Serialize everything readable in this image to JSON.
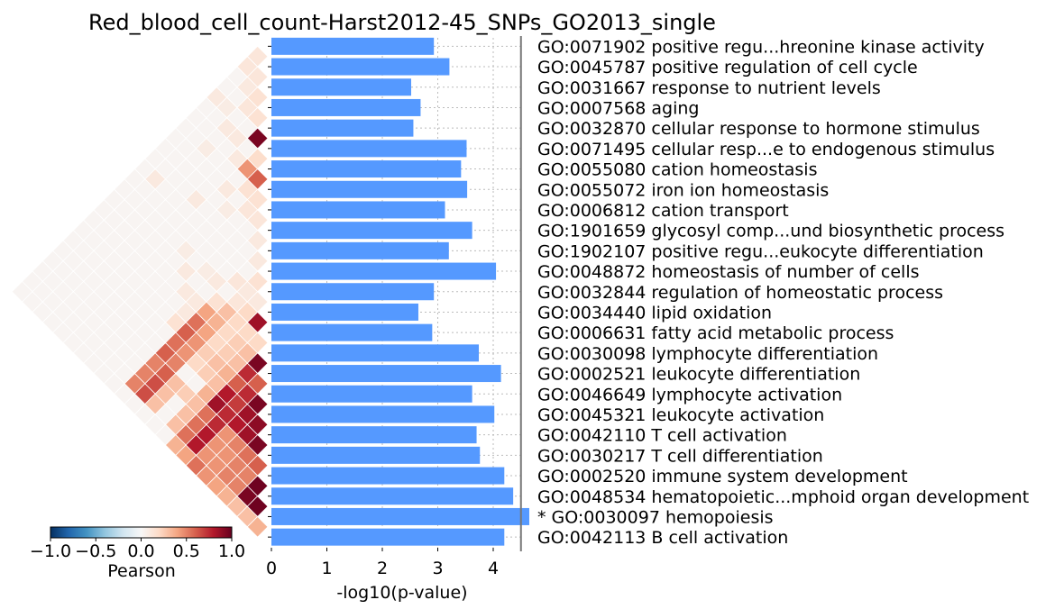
{
  "chart_data": {
    "type": "bar",
    "orientation": "horizontal",
    "title": "Red_blood_cell_count-Harst2012-45_SNPs_GO2013_single",
    "xlabel": "-log10(p-value)",
    "xlim": [
      0,
      4.6
    ],
    "xticks": [
      "0",
      "1",
      "2",
      "3",
      "4"
    ],
    "threshold": 4.5,
    "bar_color": "#5599ff",
    "grid": "dotted-vertical",
    "categories": [
      "GO:0071902 positive regu...hreonine kinase activity",
      "GO:0045787 positive regulation of cell cycle",
      "GO:0031667 response to nutrient levels",
      "GO:0007568 aging",
      "GO:0032870 cellular response to hormone stimulus",
      "GO:0071495 cellular resp...e to endogenous stimulus",
      "GO:0055080 cation homeostasis",
      "GO:0055072 iron ion homeostasis",
      "GO:0006812 cation transport",
      "GO:1901659 glycosyl comp...und biosynthetic process",
      "GO:1902107 positive regu...eukocyte differentiation",
      "GO:0048872 homeostasis of number of cells",
      "GO:0032844 regulation of homeostatic process",
      "GO:0034440 lipid oxidation",
      "GO:0006631 fatty acid metabolic process",
      "GO:0030098 lymphocyte differentiation",
      "GO:0002521 leukocyte differentiation",
      "GO:0046649 lymphocyte activation",
      "GO:0045321 leukocyte activation",
      "GO:0042110 T cell activation",
      "GO:0030217 T cell differentiation",
      "GO:0002520 immune system development",
      "GO:0048534 hematopoietic...mphoid organ development",
      "* GO:0030097 hemopoiesis",
      "GO:0042113 B cell activation"
    ],
    "values": [
      2.93,
      3.21,
      2.52,
      2.69,
      2.56,
      3.52,
      3.42,
      3.53,
      3.13,
      3.62,
      3.2,
      4.05,
      2.93,
      2.65,
      2.9,
      3.74,
      4.14,
      3.62,
      4.02,
      3.7,
      3.76,
      4.2,
      4.36,
      4.65,
      4.2
    ],
    "heatmap": {
      "label": "Pearson",
      "colorbar_ticks": [
        "−1.0",
        "−0.5",
        "0.0",
        "0.5",
        "1.0"
      ],
      "vmin": -1,
      "vmax": 1,
      "correlations": [
        [
          0,
          1,
          0.12
        ],
        [
          0,
          2,
          0.12
        ],
        [
          1,
          2,
          0.12
        ],
        [
          1,
          3,
          0.1
        ],
        [
          2,
          3,
          0.15
        ],
        [
          2,
          4,
          0.12
        ],
        [
          3,
          4,
          0.15
        ],
        [
          4,
          5,
          0.95
        ],
        [
          0,
          5,
          0.1
        ],
        [
          1,
          5,
          0.08
        ],
        [
          2,
          6,
          0.1
        ],
        [
          5,
          6,
          0.18
        ],
        [
          6,
          7,
          0.6
        ],
        [
          5,
          7,
          0.45
        ],
        [
          7,
          8,
          0.15
        ],
        [
          6,
          8,
          0.15
        ],
        [
          8,
          9,
          0.12
        ],
        [
          7,
          9,
          0.12
        ],
        [
          9,
          10,
          0.1
        ],
        [
          10,
          11,
          0.1
        ],
        [
          3,
          6,
          0.1
        ],
        [
          4,
          7,
          0.1
        ],
        [
          2,
          8,
          0.08
        ],
        [
          5,
          9,
          0.1
        ],
        [
          6,
          10,
          0.08
        ],
        [
          4,
          11,
          0.1
        ],
        [
          1,
          12,
          0.1
        ],
        [
          11,
          12,
          0.15
        ],
        [
          12,
          13,
          0.1
        ],
        [
          13,
          14,
          0.85
        ],
        [
          12,
          14,
          0.2
        ],
        [
          11,
          13,
          0.1
        ],
        [
          11,
          14,
          0.12
        ],
        [
          10,
          13,
          0.12
        ],
        [
          9,
          14,
          0.1
        ],
        [
          8,
          14,
          0.08
        ],
        [
          10,
          15,
          0.15
        ],
        [
          14,
          15,
          0.2
        ],
        [
          15,
          16,
          0.95
        ],
        [
          13,
          16,
          0.25
        ],
        [
          14,
          16,
          0.3
        ],
        [
          12,
          16,
          0.2
        ],
        [
          12,
          15,
          0.2
        ],
        [
          11,
          16,
          0.35
        ],
        [
          11,
          15,
          0.3
        ],
        [
          10,
          16,
          0.4
        ],
        [
          13,
          15,
          0.2
        ],
        [
          9,
          16,
          0.1
        ],
        [
          8,
          16,
          0.1
        ],
        [
          7,
          15,
          0.1
        ],
        [
          6,
          14,
          0.08
        ],
        [
          16,
          17,
          0.6
        ],
        [
          15,
          17,
          0.75
        ],
        [
          17,
          18,
          0.95
        ],
        [
          16,
          18,
          0.75
        ],
        [
          15,
          18,
          0.6
        ],
        [
          14,
          17,
          0.3
        ],
        [
          14,
          18,
          0.35
        ],
        [
          13,
          17,
          0.25
        ],
        [
          13,
          18,
          0.3
        ],
        [
          12,
          17,
          0.2
        ],
        [
          12,
          18,
          0.25
        ],
        [
          11,
          17,
          0.4
        ],
        [
          11,
          18,
          0.45
        ],
        [
          10,
          17,
          0.55
        ],
        [
          10,
          18,
          0.6
        ],
        [
          9,
          18,
          0.15
        ],
        [
          9,
          17,
          0.1
        ],
        [
          18,
          19,
          0.9
        ],
        [
          17,
          19,
          0.85
        ],
        [
          16,
          19,
          0.7
        ],
        [
          15,
          19,
          0.8
        ],
        [
          19,
          20,
          0.95
        ],
        [
          18,
          20,
          0.85
        ],
        [
          17,
          20,
          0.8
        ],
        [
          16,
          20,
          0.75
        ],
        [
          15,
          20,
          0.85
        ],
        [
          14,
          19,
          0.3
        ],
        [
          14,
          20,
          0.35
        ],
        [
          13,
          19,
          0.25
        ],
        [
          12,
          19,
          0.2
        ],
        [
          11,
          19,
          0.45
        ],
        [
          11,
          20,
          0.5
        ],
        [
          10,
          19,
          0.55
        ],
        [
          10,
          20,
          0.6
        ],
        [
          20,
          21,
          0.6
        ],
        [
          19,
          21,
          0.55
        ],
        [
          18,
          21,
          0.5
        ],
        [
          17,
          21,
          0.45
        ],
        [
          16,
          21,
          0.75
        ],
        [
          15,
          21,
          0.55
        ],
        [
          21,
          22,
          0.98
        ],
        [
          20,
          22,
          0.5
        ],
        [
          19,
          22,
          0.5
        ],
        [
          18,
          22,
          0.45
        ],
        [
          17,
          22,
          0.45
        ],
        [
          16,
          22,
          0.8
        ],
        [
          15,
          22,
          0.55
        ],
        [
          14,
          21,
          0.3
        ],
        [
          14,
          22,
          0.3
        ],
        [
          13,
          21,
          0.25
        ],
        [
          12,
          21,
          0.3
        ],
        [
          12,
          22,
          0.3
        ],
        [
          11,
          21,
          0.6
        ],
        [
          11,
          22,
          0.65
        ],
        [
          10,
          21,
          0.5
        ],
        [
          10,
          22,
          0.5
        ],
        [
          22,
          23,
          0.98
        ],
        [
          21,
          23,
          0.95
        ],
        [
          20,
          23,
          0.5
        ],
        [
          19,
          23,
          0.5
        ],
        [
          18,
          23,
          0.45
        ],
        [
          17,
          23,
          0.45
        ],
        [
          16,
          23,
          0.8
        ],
        [
          15,
          23,
          0.55
        ],
        [
          14,
          23,
          0.3
        ],
        [
          12,
          23,
          0.3
        ],
        [
          11,
          23,
          0.65
        ],
        [
          10,
          23,
          0.5
        ],
        [
          23,
          24,
          0.35
        ],
        [
          22,
          24,
          0.3
        ],
        [
          21,
          24,
          0.3
        ],
        [
          20,
          24,
          0.35
        ],
        [
          19,
          24,
          0.4
        ],
        [
          18,
          24,
          0.45
        ],
        [
          17,
          24,
          0.55
        ],
        [
          16,
          24,
          0.4
        ],
        [
          15,
          24,
          0.35
        ]
      ]
    }
  }
}
